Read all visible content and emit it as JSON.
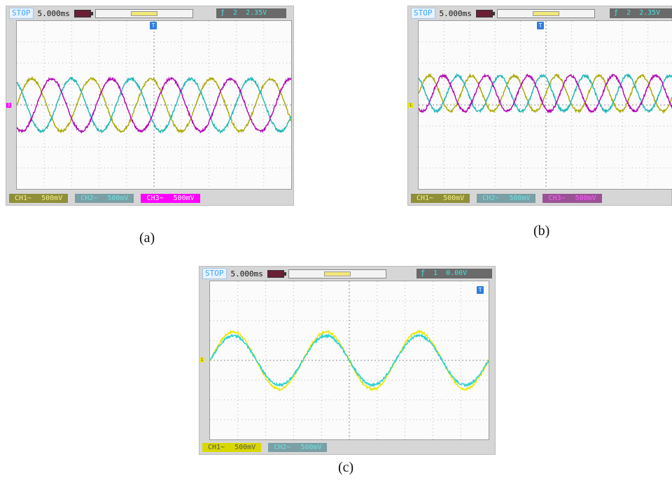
{
  "panels": [
    {
      "id": "a",
      "caption": "(a)",
      "status": "STOP",
      "timebase": "5.000ms",
      "trigger_source": "2",
      "trigger_level": "2.35V",
      "channel_labels": [
        {
          "name": "CH1~",
          "scale": "500mV"
        },
        {
          "name": "CH2~",
          "scale": "500mV"
        },
        {
          "name": "CH3~",
          "scale": "500mV"
        }
      ],
      "left_marker": "3",
      "trigger_marker": "T",
      "waveforms": [
        {
          "channel": "CH1",
          "color": "#a8a800",
          "amplitude": 1.25,
          "cycles": 4.6,
          "phase_deg": 0,
          "offset_div": 0
        },
        {
          "channel": "CH2",
          "color": "#1fb5b5",
          "amplitude": 1.25,
          "cycles": 4.6,
          "phase_deg": 120,
          "offset_div": 0
        },
        {
          "channel": "CH3",
          "color": "#b000b0",
          "amplitude": 1.25,
          "cycles": 4.6,
          "phase_deg": 240,
          "offset_div": 0
        }
      ]
    },
    {
      "id": "b",
      "caption": "(b)",
      "status": "STOP",
      "timebase": "5.000ms",
      "trigger_source": "2",
      "trigger_level": "2.35V",
      "channel_labels": [
        {
          "name": "CH1~",
          "scale": "500mV"
        },
        {
          "name": "CH2~",
          "scale": "500mV"
        },
        {
          "name": "CH3~",
          "scale": "500mV"
        }
      ],
      "left_marker": "1",
      "trigger_marker": "T",
      "waveforms": [
        {
          "channel": "CH1",
          "color": "#a8a800",
          "amplitude": 0.85,
          "cycles": 6,
          "phase_deg": 0,
          "offset_div": 0.55
        },
        {
          "channel": "CH2",
          "color": "#1fb5b5",
          "amplitude": 0.85,
          "cycles": 6,
          "phase_deg": 120,
          "offset_div": 0.55
        },
        {
          "channel": "CH3",
          "color": "#b000b0",
          "amplitude": 0.85,
          "cycles": 6,
          "phase_deg": 240,
          "offset_div": 0.55
        }
      ]
    },
    {
      "id": "c",
      "caption": "(c)",
      "status": "STOP",
      "timebase": "5.000ms",
      "trigger_source": "1",
      "trigger_level": "0.00V",
      "channel_labels": [
        {
          "name": "CH1~",
          "scale": "500mV"
        },
        {
          "name": "CH2~",
          "scale": "500mV"
        }
      ],
      "left_marker": "1",
      "trigger_marker": "T",
      "waveforms": [
        {
          "channel": "CH1",
          "color": "#e8e800",
          "amplitude": 1.45,
          "cycles": 3,
          "phase_deg": 0,
          "offset_div": 0
        },
        {
          "channel": "CH2",
          "color": "#28d0d0",
          "amplitude": 1.25,
          "cycles": 3,
          "phase_deg": 0,
          "offset_div": 0
        }
      ]
    }
  ]
}
